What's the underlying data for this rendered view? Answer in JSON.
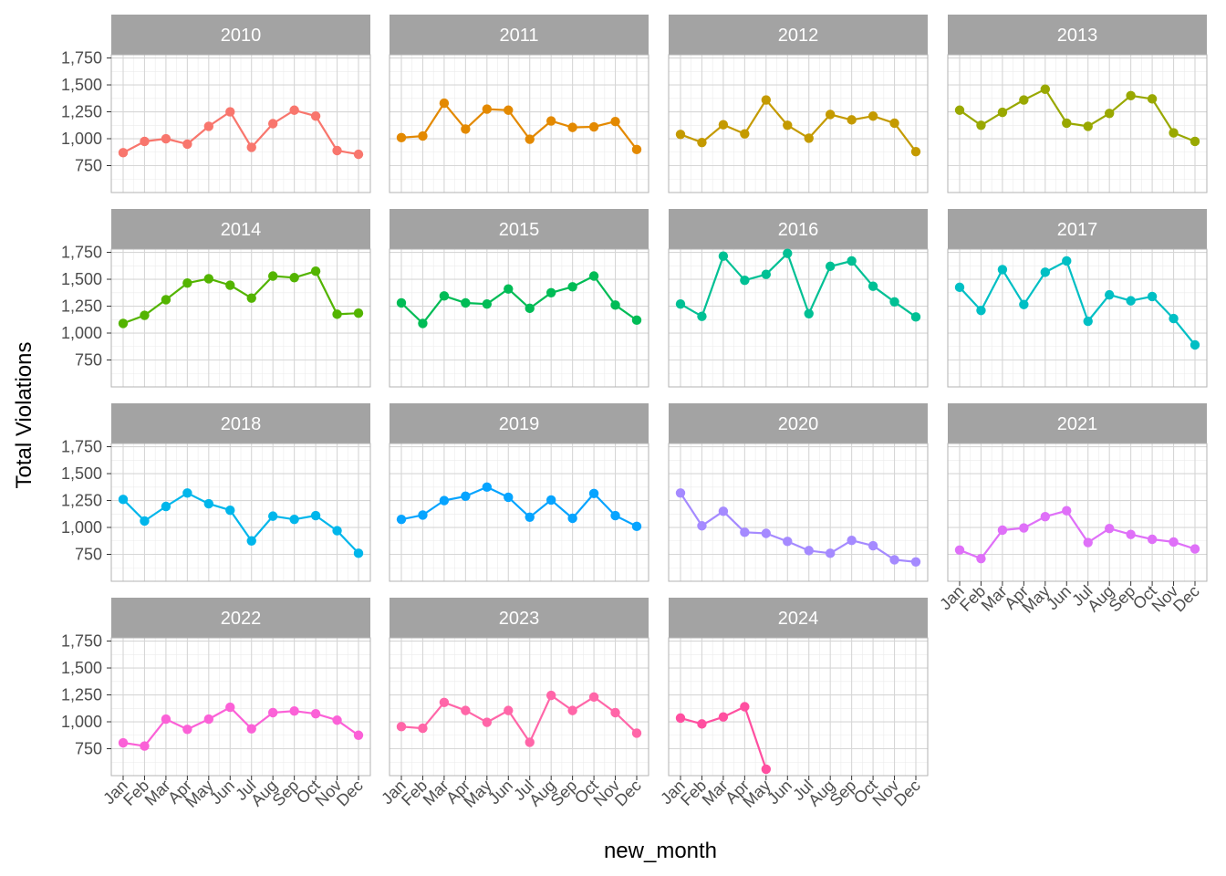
{
  "chart_data": {
    "type": "line",
    "facet_by": "year",
    "xlabel": "new_month",
    "ylabel": "Total Violations",
    "categories": [
      "Jan",
      "Feb",
      "Mar",
      "Apr",
      "May",
      "Jun",
      "Jul",
      "Aug",
      "Sep",
      "Oct",
      "Nov",
      "Dec"
    ],
    "y_ticks": [
      750,
      1000,
      1250,
      1500,
      1750
    ],
    "y_tick_labels": [
      "750",
      "1,000",
      "1,250",
      "1,500",
      "1,750"
    ],
    "ylim": [
      500,
      1780
    ],
    "grid": true,
    "legend": "none",
    "facets": [
      {
        "name": "2010",
        "color": "#F8766D",
        "values": [
          870,
          975,
          1000,
          950,
          1115,
          1250,
          920,
          1140,
          1265,
          1210,
          890,
          855
        ]
      },
      {
        "name": "2011",
        "color": "#E38900",
        "values": [
          1010,
          1025,
          1330,
          1090,
          1275,
          1265,
          995,
          1165,
          1105,
          1110,
          1160,
          900
        ]
      },
      {
        "name": "2012",
        "color": "#C49A00",
        "values": [
          1040,
          965,
          1130,
          1045,
          1360,
          1125,
          1005,
          1225,
          1175,
          1210,
          1145,
          880
        ]
      },
      {
        "name": "2013",
        "color": "#99A800",
        "values": [
          1265,
          1125,
          1245,
          1360,
          1460,
          1145,
          1115,
          1235,
          1400,
          1370,
          1055,
          975
        ]
      },
      {
        "name": "2014",
        "color": "#53B400",
        "values": [
          1090,
          1165,
          1310,
          1465,
          1505,
          1445,
          1325,
          1530,
          1515,
          1575,
          1175,
          1185
        ]
      },
      {
        "name": "2015",
        "color": "#00BC56",
        "values": [
          1280,
          1090,
          1345,
          1280,
          1270,
          1410,
          1230,
          1375,
          1430,
          1530,
          1260,
          1120
        ]
      },
      {
        "name": "2016",
        "color": "#00C094",
        "values": [
          1270,
          1155,
          1715,
          1490,
          1545,
          1740,
          1180,
          1620,
          1670,
          1435,
          1290,
          1150
        ]
      },
      {
        "name": "2017",
        "color": "#00BFC4",
        "values": [
          1425,
          1210,
          1590,
          1265,
          1565,
          1670,
          1110,
          1355,
          1300,
          1340,
          1135,
          890
        ]
      },
      {
        "name": "2018",
        "color": "#00B6EB",
        "values": [
          1260,
          1060,
          1195,
          1320,
          1220,
          1160,
          875,
          1105,
          1075,
          1110,
          970,
          760
        ]
      },
      {
        "name": "2019",
        "color": "#06A4FF",
        "values": [
          1075,
          1115,
          1250,
          1290,
          1375,
          1280,
          1095,
          1255,
          1085,
          1315,
          1110,
          1010
        ]
      },
      {
        "name": "2020",
        "color": "#A58AFF",
        "values": [
          1320,
          1015,
          1150,
          955,
          945,
          870,
          785,
          760,
          880,
          830,
          700,
          680
        ]
      },
      {
        "name": "2021",
        "color": "#DF70F8",
        "values": [
          790,
          710,
          975,
          995,
          1100,
          1155,
          860,
          990,
          935,
          890,
          865,
          800
        ]
      },
      {
        "name": "2022",
        "color": "#FB61D7",
        "values": [
          805,
          775,
          1025,
          930,
          1025,
          1135,
          935,
          1085,
          1100,
          1075,
          1015,
          875
        ]
      },
      {
        "name": "2023",
        "color": "#FF66A8",
        "values": [
          955,
          940,
          1180,
          1105,
          995,
          1105,
          810,
          1245,
          1105,
          1230,
          1085,
          895
        ]
      },
      {
        "name": "2024",
        "color": "#FF4FA0",
        "values": [
          1035,
          980,
          1045,
          1140,
          560
        ]
      }
    ],
    "x_axis_shown_under": [
      "2021",
      "2022",
      "2023",
      "2024"
    ]
  }
}
